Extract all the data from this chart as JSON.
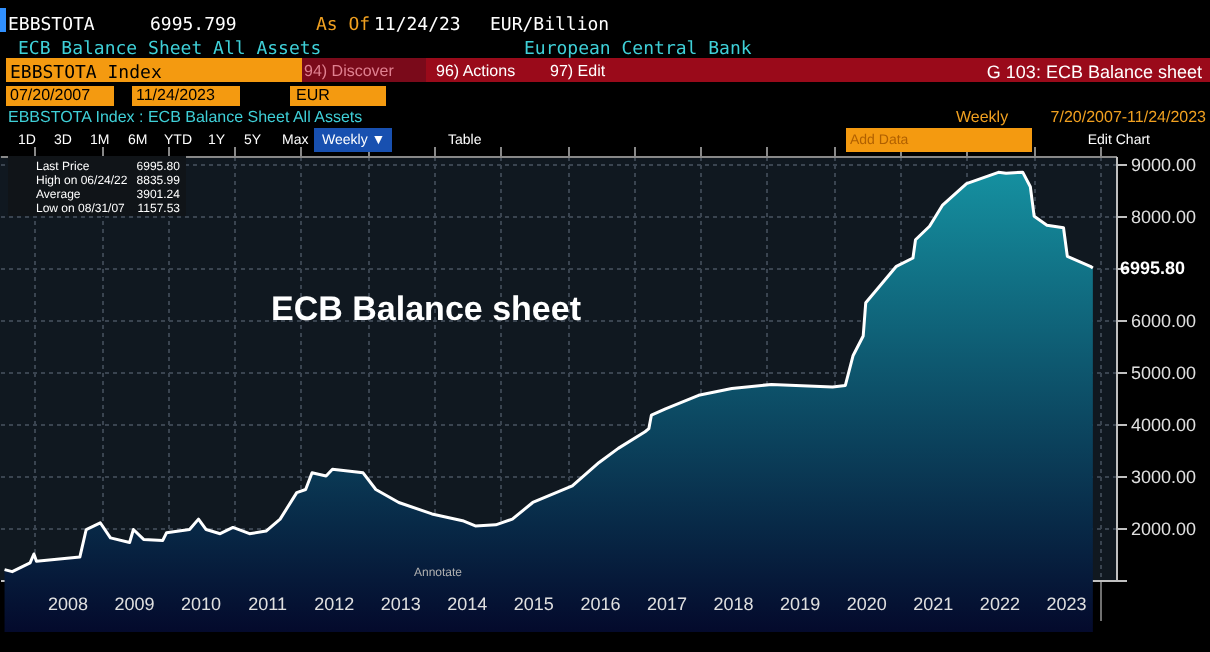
{
  "chart_data": {
    "type": "area",
    "title": "ECB Balance sheet",
    "x": [
      "2007-07-20",
      "2007-08-31",
      "2007-12-07",
      "2007-12-28",
      "2008-01-11",
      "2008-09-05",
      "2008-10-10",
      "2008-12-26",
      "2009-02-20",
      "2009-06-05",
      "2009-06-26",
      "2009-08-21",
      "2009-12-04",
      "2009-12-25",
      "2010-04-30",
      "2010-06-18",
      "2010-07-30",
      "2010-10-15",
      "2010-12-24",
      "2011-03-25",
      "2011-06-24",
      "2011-09-09",
      "2011-12-09",
      "2012-01-27",
      "2012-03-02",
      "2012-05-18",
      "2012-06-22",
      "2012-12-07",
      "2013-02-15",
      "2013-06-21",
      "2013-12-20",
      "2014-06-06",
      "2014-08-15",
      "2014-12-05",
      "2015-03-06",
      "2015-06-26",
      "2016-01-29",
      "2016-06-24",
      "2016-10-07",
      "2017-03-03",
      "2017-03-24",
      "2017-04-07",
      "2017-06-23",
      "2017-12-22",
      "2018-06-22",
      "2019-01-25",
      "2019-12-27",
      "2020-03-06",
      "2020-04-17",
      "2020-06-12",
      "2020-06-26",
      "2020-09-25",
      "2020-12-11",
      "2021-03-12",
      "2021-03-26",
      "2021-06-11",
      "2021-08-20",
      "2021-12-31",
      "2022-06-24",
      "2022-08-05",
      "2022-11-04",
      "2022-12-16",
      "2023-01-06",
      "2023-03-17",
      "2023-06-16",
      "2023-07-07",
      "2023-11-10",
      "2023-11-24"
    ],
    "series": [
      {
        "color": "#1590a0",
        "values": [
          1200,
          1160,
          1330,
          1500,
          1360,
          1440,
          1970,
          2100,
          1810,
          1720,
          1970,
          1780,
          1760,
          1910,
          1970,
          2170,
          1970,
          1890,
          2010,
          1890,
          1940,
          2170,
          2680,
          2740,
          3060,
          3000,
          3130,
          3060,
          2740,
          2490,
          2270,
          2140,
          2040,
          2060,
          2170,
          2490,
          2810,
          3260,
          3530,
          3850,
          3910,
          4170,
          4290,
          4550,
          4680,
          4760,
          4710,
          4740,
          5310,
          5690,
          6330,
          6710,
          7030,
          7190,
          7540,
          7800,
          8200,
          8620,
          8836,
          8820,
          8840,
          8560,
          7990,
          7820,
          7770,
          7220,
          7030,
          6995.8
        ],
        "value_labels": [
          null,
          null,
          null,
          null,
          null,
          null,
          null,
          null,
          null,
          null,
          null,
          null,
          null,
          null,
          null,
          null,
          null,
          null,
          null,
          null,
          null,
          null,
          null,
          null,
          null,
          null,
          null,
          null,
          null,
          null,
          null,
          null,
          null,
          null,
          null,
          null,
          null,
          null,
          null,
          null,
          null,
          null,
          null,
          null,
          null,
          null,
          null,
          null,
          null,
          null,
          null,
          null,
          null,
          null,
          null,
          null,
          null,
          null,
          null,
          null,
          null,
          null,
          null,
          null,
          null,
          null,
          null,
          "6995.80"
        ]
      }
    ],
    "xlim": [
      "2007-06-25",
      "2024-03-30"
    ],
    "xticks": [
      {
        "value": "2008-01-01",
        "label": null
      },
      {
        "value": "2009-01-01",
        "label": null
      },
      {
        "value": "2010-01-01",
        "label": null
      },
      {
        "value": "2011-01-01",
        "label": null
      },
      {
        "value": "2012-01-01",
        "label": null
      },
      {
        "value": "2013-01-01",
        "label": null
      },
      {
        "value": "2014-01-01",
        "label": null
      },
      {
        "value": "2015-01-01",
        "label": null
      },
      {
        "value": "2016-01-01",
        "label": null
      },
      {
        "value": "2017-01-01",
        "label": null
      },
      {
        "value": "2018-01-01",
        "label": null
      },
      {
        "value": "2019-01-01",
        "label": null
      },
      {
        "value": "2020-01-01",
        "label": null
      },
      {
        "value": "2021-01-01",
        "label": null
      },
      {
        "value": "2022-01-01",
        "label": null
      },
      {
        "value": "2023-01-01",
        "label": null
      },
      {
        "value": "2024-01-01",
        "label": null
      },
      {
        "value": "2008-07-02",
        "label": "2008"
      },
      {
        "value": "2009-07-02",
        "label": "2009"
      },
      {
        "value": "2010-07-02",
        "label": "2010"
      },
      {
        "value": "2011-07-02",
        "label": "2011"
      },
      {
        "value": "2012-07-02",
        "label": "2012"
      },
      {
        "value": "2013-07-02",
        "label": "2013"
      },
      {
        "value": "2014-07-02",
        "label": "2014"
      },
      {
        "value": "2015-07-02",
        "label": "2015"
      },
      {
        "value": "2016-07-02",
        "label": "2016"
      },
      {
        "value": "2017-07-02",
        "label": "2017"
      },
      {
        "value": "2018-07-02",
        "label": "2018"
      },
      {
        "value": "2019-07-02",
        "label": "2019"
      },
      {
        "value": "2020-07-02",
        "label": "2020"
      },
      {
        "value": "2021-07-02",
        "label": "2021"
      },
      {
        "value": "2022-07-02",
        "label": "2022"
      },
      {
        "value": "2023-07-02",
        "label": "2023"
      }
    ],
    "ylim": [
      1000,
      9150
    ],
    "yticks": [
      {
        "value": 1000,
        "label": null
      },
      {
        "value": 2000,
        "label": "2000.00"
      },
      {
        "value": 3000,
        "label": "3000.00"
      },
      {
        "value": 4000,
        "label": "4000.00"
      },
      {
        "value": 5000,
        "label": "5000.00"
      },
      {
        "value": 6000,
        "label": "6000.00"
      },
      {
        "value": 7000,
        "label": null
      },
      {
        "value": 8000,
        "label": "8000.00"
      },
      {
        "value": 9000,
        "label": "9000.00"
      }
    ],
    "grid": true,
    "annotations": [
      "EBBSTOTA",
      "6995.799",
      "As Of",
      "11/24/23",
      "EUR/Billion",
      "ECB Balance Sheet All Assets",
      "European Central Bank",
      "EBBSTOTA Index",
      "94) Discover",
      "96) Actions",
      "97) Edit",
      "G 103: ECB Balance sheet",
      "07/20/2007",
      "11/24/2023",
      "EUR",
      "EBBSTOTA Index : ECB Balance Sheet All Assets",
      "Weekly",
      "7/20/2007-11/24/2023",
      "1D",
      "3D",
      "1M",
      "6M",
      "YTD",
      "1Y",
      "5Y",
      "Max",
      "Weekly ▼",
      "Table",
      "Add Data",
      "Edit Chart",
      "Last Price",
      "6995.80",
      "High on 06/24/22",
      "8835.99",
      "Average",
      "3901.24",
      "Low on 08/31/07",
      "1157.53",
      "Annotate"
    ]
  }
}
